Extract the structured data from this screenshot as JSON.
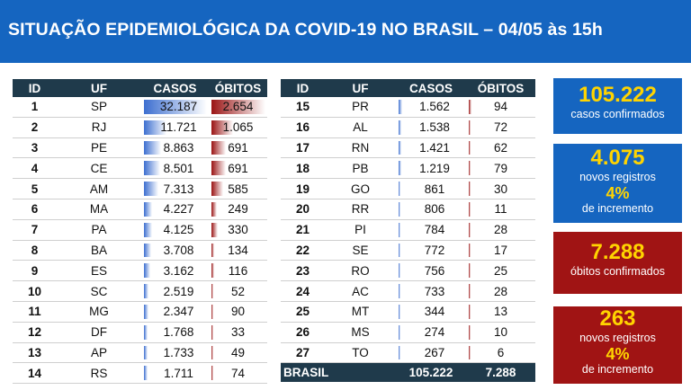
{
  "header": {
    "title": "SITUAÇÃO EPIDEMIOLÓGICA DA COVID-19 NO BRASIL – 04/05 às 15h"
  },
  "table": {
    "columns": [
      "ID",
      "UF",
      "CASOS",
      "ÓBITOS"
    ],
    "rows": [
      {
        "id": "1",
        "uf": "SP",
        "casos": "32.187",
        "obitos": "2.654",
        "casos_num": 32187,
        "obitos_num": 2654
      },
      {
        "id": "2",
        "uf": "RJ",
        "casos": "11.721",
        "obitos": "1.065",
        "casos_num": 11721,
        "obitos_num": 1065
      },
      {
        "id": "3",
        "uf": "PE",
        "casos": "8.863",
        "obitos": "691",
        "casos_num": 8863,
        "obitos_num": 691
      },
      {
        "id": "4",
        "uf": "CE",
        "casos": "8.501",
        "obitos": "691",
        "casos_num": 8501,
        "obitos_num": 691
      },
      {
        "id": "5",
        "uf": "AM",
        "casos": "7.313",
        "obitos": "585",
        "casos_num": 7313,
        "obitos_num": 585
      },
      {
        "id": "6",
        "uf": "MA",
        "casos": "4.227",
        "obitos": "249",
        "casos_num": 4227,
        "obitos_num": 249
      },
      {
        "id": "7",
        "uf": "PA",
        "casos": "4.125",
        "obitos": "330",
        "casos_num": 4125,
        "obitos_num": 330
      },
      {
        "id": "8",
        "uf": "BA",
        "casos": "3.708",
        "obitos": "134",
        "casos_num": 3708,
        "obitos_num": 134
      },
      {
        "id": "9",
        "uf": "ES",
        "casos": "3.162",
        "obitos": "116",
        "casos_num": 3162,
        "obitos_num": 116
      },
      {
        "id": "10",
        "uf": "SC",
        "casos": "2.519",
        "obitos": "52",
        "casos_num": 2519,
        "obitos_num": 52
      },
      {
        "id": "11",
        "uf": "MG",
        "casos": "2.347",
        "obitos": "90",
        "casos_num": 2347,
        "obitos_num": 90
      },
      {
        "id": "12",
        "uf": "DF",
        "casos": "1.768",
        "obitos": "33",
        "casos_num": 1768,
        "obitos_num": 33
      },
      {
        "id": "13",
        "uf": "AP",
        "casos": "1.733",
        "obitos": "49",
        "casos_num": 1733,
        "obitos_num": 49
      },
      {
        "id": "14",
        "uf": "RS",
        "casos": "1.711",
        "obitos": "74",
        "casos_num": 1711,
        "obitos_num": 74
      },
      {
        "id": "15",
        "uf": "PR",
        "casos": "1.562",
        "obitos": "94",
        "casos_num": 1562,
        "obitos_num": 94
      },
      {
        "id": "16",
        "uf": "AL",
        "casos": "1.538",
        "obitos": "72",
        "casos_num": 1538,
        "obitos_num": 72
      },
      {
        "id": "17",
        "uf": "RN",
        "casos": "1.421",
        "obitos": "62",
        "casos_num": 1421,
        "obitos_num": 62
      },
      {
        "id": "18",
        "uf": "PB",
        "casos": "1.219",
        "obitos": "79",
        "casos_num": 1219,
        "obitos_num": 79
      },
      {
        "id": "19",
        "uf": "GO",
        "casos": "861",
        "obitos": "30",
        "casos_num": 861,
        "obitos_num": 30
      },
      {
        "id": "20",
        "uf": "RR",
        "casos": "806",
        "obitos": "11",
        "casos_num": 806,
        "obitos_num": 11
      },
      {
        "id": "21",
        "uf": "PI",
        "casos": "784",
        "obitos": "28",
        "casos_num": 784,
        "obitos_num": 28
      },
      {
        "id": "22",
        "uf": "SE",
        "casos": "772",
        "obitos": "17",
        "casos_num": 772,
        "obitos_num": 17
      },
      {
        "id": "23",
        "uf": "RO",
        "casos": "756",
        "obitos": "25",
        "casos_num": 756,
        "obitos_num": 25
      },
      {
        "id": "24",
        "uf": "AC",
        "casos": "733",
        "obitos": "28",
        "casos_num": 733,
        "obitos_num": 28
      },
      {
        "id": "25",
        "uf": "MT",
        "casos": "344",
        "obitos": "13",
        "casos_num": 344,
        "obitos_num": 13
      },
      {
        "id": "26",
        "uf": "MS",
        "casos": "274",
        "obitos": "10",
        "casos_num": 274,
        "obitos_num": 10
      },
      {
        "id": "27",
        "uf": "TO",
        "casos": "267",
        "obitos": "6",
        "casos_num": 267,
        "obitos_num": 6
      }
    ],
    "total": {
      "label": "BRASIL",
      "casos": "105.222",
      "obitos": "7.288"
    }
  },
  "cards": [
    {
      "color": "#1565c0",
      "big": "105.222",
      "lines": [
        "casos confirmados"
      ]
    },
    {
      "color": "#1565c0",
      "big": "4.075",
      "lines": [
        "novos registros"
      ],
      "pct": "4%",
      "lines2": [
        "de incremento"
      ]
    },
    {
      "color": "#a01414",
      "big": "7.288",
      "lines": [
        "óbitos confirmados"
      ]
    },
    {
      "color": "#a01414",
      "big": "263",
      "lines": [
        "novos registros"
      ],
      "pct": "4%",
      "lines2": [
        "de incremento"
      ]
    }
  ],
  "colors": {
    "header_bg": "#1565c0",
    "table_header_bg": "#1f3a4b",
    "cases_bar": "#3d6fd0",
    "deaths_bar": "#9a1414",
    "card_value": "#ffd400"
  }
}
